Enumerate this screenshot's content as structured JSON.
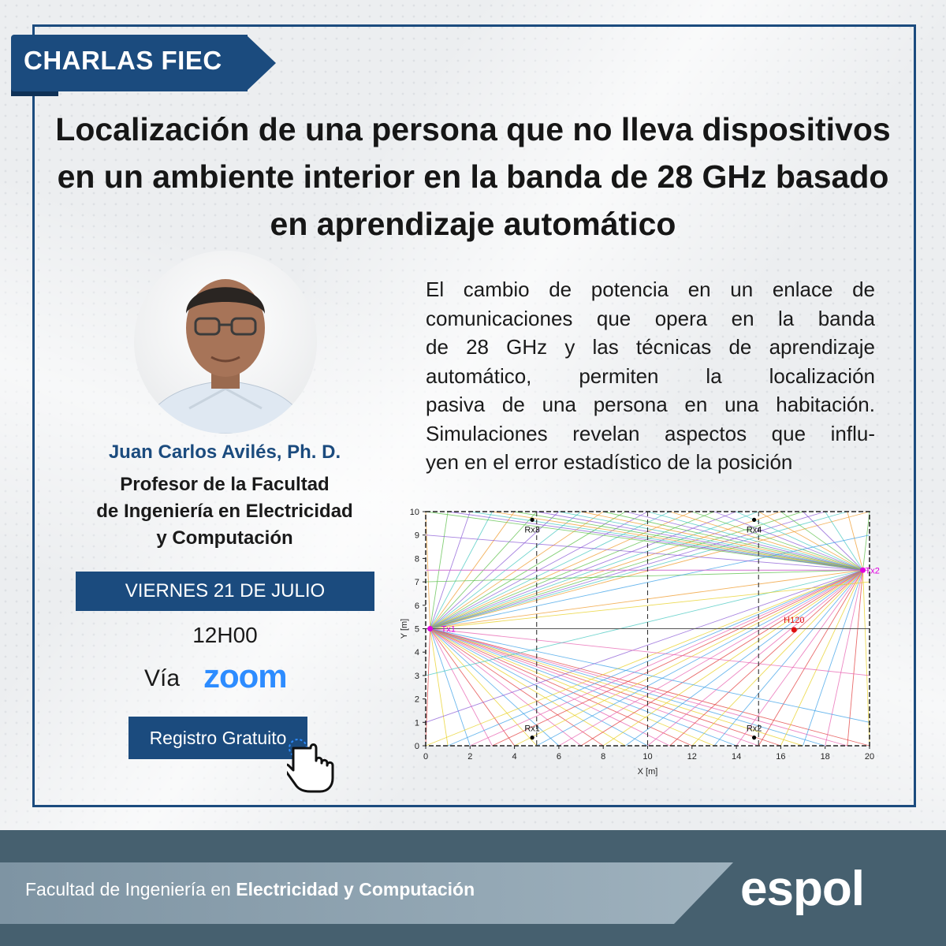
{
  "banner": {
    "label": "CHARLAS FIEC"
  },
  "talk": {
    "title": "Localización de una persona que no lleva dispositivos en un ambiente interior en la banda de 28 GHz basado en aprendizaje automático",
    "description_lines": [
      "El cambio de potencia en un enlace de",
      "comunicaciones que opera en la banda",
      "de 28 GHz y las técnicas de aprendizaje",
      "automático, permiten la localización",
      "pasiva de una persona en una habitación.",
      "Simulaciones revelan aspectos que influ-",
      "yen en el error estadístico de la posición"
    ]
  },
  "speaker": {
    "name": "Juan Carlos Avilés, Ph. D.",
    "role_lines": [
      "Profesor de la Facultad",
      "de Ingeniería en Electricidad",
      "y Computación"
    ]
  },
  "event": {
    "date": "VIERNES 21 DE JULIO",
    "time": "12H00",
    "via_label": "Vía",
    "platform": "zoom",
    "register_label": "Registro Gratuito"
  },
  "footer": {
    "faculty_prefix": "Facultad de Ingeniería en ",
    "faculty_bold": "Electricidad y Computación",
    "logo_text": "espol"
  },
  "colors": {
    "brand_blue": "#1b4b7e",
    "footer_gray": "#46606f",
    "zoom_blue": "#2d8cff"
  },
  "chart_data": {
    "type": "scatter",
    "xlabel": "X [m]",
    "ylabel": "Y [m]",
    "xlim": [
      0,
      20
    ],
    "ylim": [
      0,
      10
    ],
    "xticks": [
      0,
      2,
      4,
      6,
      8,
      10,
      12,
      14,
      16,
      18,
      20
    ],
    "yticks": [
      0,
      1,
      2,
      3,
      4,
      5,
      6,
      7,
      8,
      9,
      10
    ],
    "points": [
      {
        "label": "Tx1",
        "x": 0.2,
        "y": 5.0,
        "color": "#e000e0"
      },
      {
        "label": "Tx2",
        "x": 19.7,
        "y": 7.5,
        "color": "#e000e0"
      },
      {
        "label": "Rx1",
        "x": 4.8,
        "y": 0.35,
        "color": "#000000"
      },
      {
        "label": "Rx2",
        "x": 14.8,
        "y": 0.35,
        "color": "#000000"
      },
      {
        "label": "Rx3",
        "x": 4.8,
        "y": 9.65,
        "color": "#000000"
      },
      {
        "label": "Rx4",
        "x": 14.8,
        "y": 9.65,
        "color": "#000000"
      },
      {
        "label": "H120",
        "x": 16.6,
        "y": 4.95,
        "color": "#e01010"
      }
    ]
  }
}
